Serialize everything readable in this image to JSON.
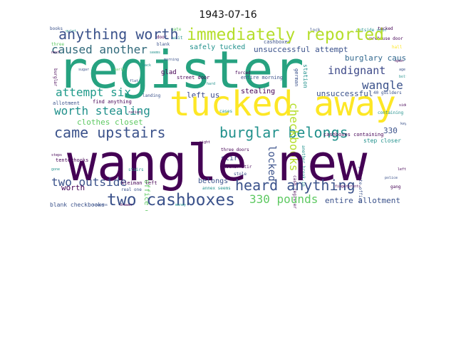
{
  "figure": {
    "title": "1943-07-16"
  },
  "words": {
    "wangle_new": "wangle new",
    "register": "register",
    "tucked_away": "tucked away",
    "immediately_reported": "immediately reported",
    "anything_worth": "anything worth",
    "came_upstairs": "came upstairs",
    "burglar_belongs": "burglar belongs",
    "heard_anything": "heard anything",
    "two_cashboxes": "two cashboxes",
    "worth_stealing": "worth stealing",
    "caused_another": "caused another",
    "attempt_six": "attempt six",
    "indignant": "indignant",
    "wangle": "wangle",
    "checkbooks": "checkbooks",
    "locked": "locked",
    "two_outside": "two outside",
    "330_pounds": "330 pounds",
    "clothes_closet": "clothes closet",
    "unsuccessful_attempt": "unsuccessful attempt",
    "burglary_caused": "burglary caused",
    "unsuccessful": "unsuccessful",
    "stealing": "stealing",
    "left_us": "left us",
    "glad": "glad",
    "safely_tucked": "safely tucked",
    "entire_allotment": "entire allotment",
    "worth": "worth",
    "belongs": "belongs",
    "n330": "330",
    "stir": "stir",
    "office_came": "office came",
    "blank_checkbooks": "blank checkbooks",
    "street_door": "street door",
    "step_closer": "step closer",
    "cashboxes_containing": "cashboxes containing",
    "another_stir": "another stir",
    "stole": "stole",
    "three_doors": "three doors",
    "find_anything": "find anything",
    "allotment": "allotment",
    "tenterhooks": "tenterhooks",
    "burglary": "burglary",
    "cash_register": "cash register",
    "another_break_in": "another break-in",
    "gang": "gang",
    "station": "station",
    "german": "german",
    "cashboxes": "cashboxes",
    "real_one": "real one",
    "kleiman_left": "kleiman left",
    "tucked": "tucked",
    "annex_seems": "annex seems",
    "stairs": "stairs",
    "burglar": "burglar",
    "entire_morning": "entire morning",
    "forced": "forced",
    "landing": "landing",
    "containing": "containing",
    "outside_door": "outside door",
    "warehouse_door": "warehouse door",
    "cases": "cases",
    "blank": "blank",
    "sugar": "sugar",
    "private_office": "private office",
    "three": "three",
    "40_guilders": "40 guilders",
    "gate": "gate",
    "wait": "wait",
    "back": "back",
    "ration": "ration",
    "fingerprints": "fingerprints",
    "age": "age",
    "steps": "steps",
    "bolt": "bolt",
    "lock": "lock",
    "hall": "hall",
    "left": "left",
    "night": "night",
    "early": "early",
    "door": "door",
    "books": "books",
    "quiet": "quiet",
    "open": "open",
    "gone": "gone",
    "side": "side",
    "key": "key",
    "hard": "hard",
    "flat": "flat",
    "next": "next",
    "seems": "seems",
    "morning": "morning",
    "drawer": "drawer",
    "money": "money",
    "coupons": "coupons",
    "police": "police"
  }
}
